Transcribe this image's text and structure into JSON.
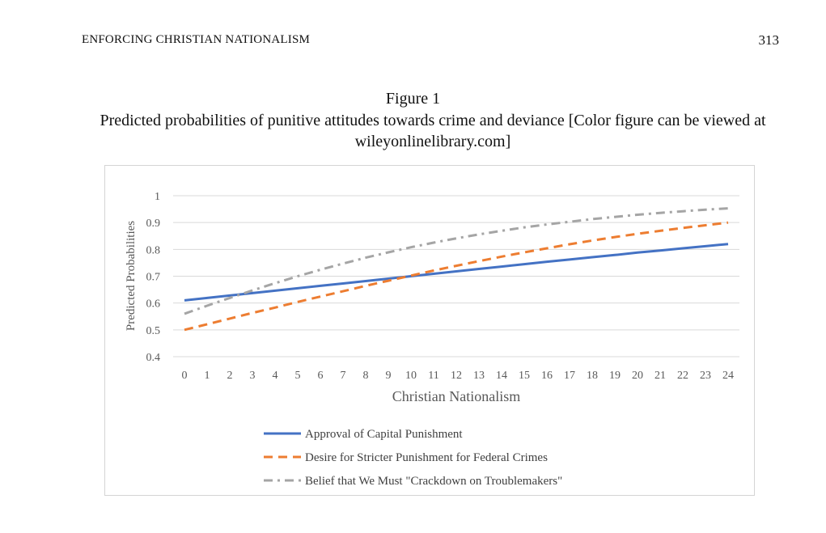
{
  "header": {
    "running_head": "ENFORCING CHRISTIAN NATIONALISM",
    "page_number": "313"
  },
  "figure": {
    "label": "Figure 1",
    "caption": "Predicted probabilities of punitive attitudes towards crime and deviance [Color figure can be viewed at wileyonlinelibrary.com]"
  },
  "colors": {
    "series_1": "#4472C4",
    "series_2": "#ED7D31",
    "series_3": "#A5A5A5",
    "grid": "#D9D9D9",
    "axis_text": "#595959"
  },
  "chart_data": {
    "type": "line",
    "title": "",
    "xlabel": "Christian Nationalism",
    "ylabel": "Predicted Probabilities",
    "x": [
      0,
      1,
      2,
      3,
      4,
      5,
      6,
      7,
      8,
      9,
      10,
      11,
      12,
      13,
      14,
      15,
      16,
      17,
      18,
      19,
      20,
      21,
      22,
      23,
      24
    ],
    "xlim": [
      0,
      24
    ],
    "ylim": [
      0.4,
      1
    ],
    "yticks": [
      0.4,
      0.5,
      0.6,
      0.7,
      0.8,
      0.9,
      1
    ],
    "ytick_labels": [
      "0.4",
      "0.5",
      "0.6",
      "0.7",
      "0.8",
      "0.9",
      "1"
    ],
    "grid": true,
    "legend_position": "bottom",
    "series": [
      {
        "name": "Approval of Capital Punishment",
        "style": "solid",
        "color": "#4472C4",
        "values": [
          0.61,
          0.619,
          0.628,
          0.637,
          0.646,
          0.655,
          0.664,
          0.673,
          0.682,
          0.691,
          0.7,
          0.709,
          0.718,
          0.727,
          0.736,
          0.745,
          0.754,
          0.762,
          0.771,
          0.779,
          0.788,
          0.796,
          0.804,
          0.812,
          0.82
        ]
      },
      {
        "name": "Desire for Stricter Punishment for Federal Crimes",
        "style": "dashed",
        "color": "#ED7D31",
        "values": [
          0.5,
          0.521,
          0.542,
          0.563,
          0.583,
          0.604,
          0.624,
          0.644,
          0.664,
          0.683,
          0.702,
          0.721,
          0.739,
          0.756,
          0.773,
          0.789,
          0.804,
          0.819,
          0.833,
          0.846,
          0.858,
          0.869,
          0.88,
          0.89,
          0.9
        ]
      },
      {
        "name": "Belief that We Must \"Crackdown on Troublemakers\"",
        "style": "dash-dot",
        "color": "#A5A5A5",
        "values": [
          0.56,
          0.59,
          0.619,
          0.647,
          0.674,
          0.7,
          0.724,
          0.747,
          0.769,
          0.789,
          0.808,
          0.825,
          0.841,
          0.856,
          0.869,
          0.882,
          0.893,
          0.903,
          0.913,
          0.921,
          0.929,
          0.936,
          0.942,
          0.948,
          0.953
        ]
      }
    ]
  }
}
